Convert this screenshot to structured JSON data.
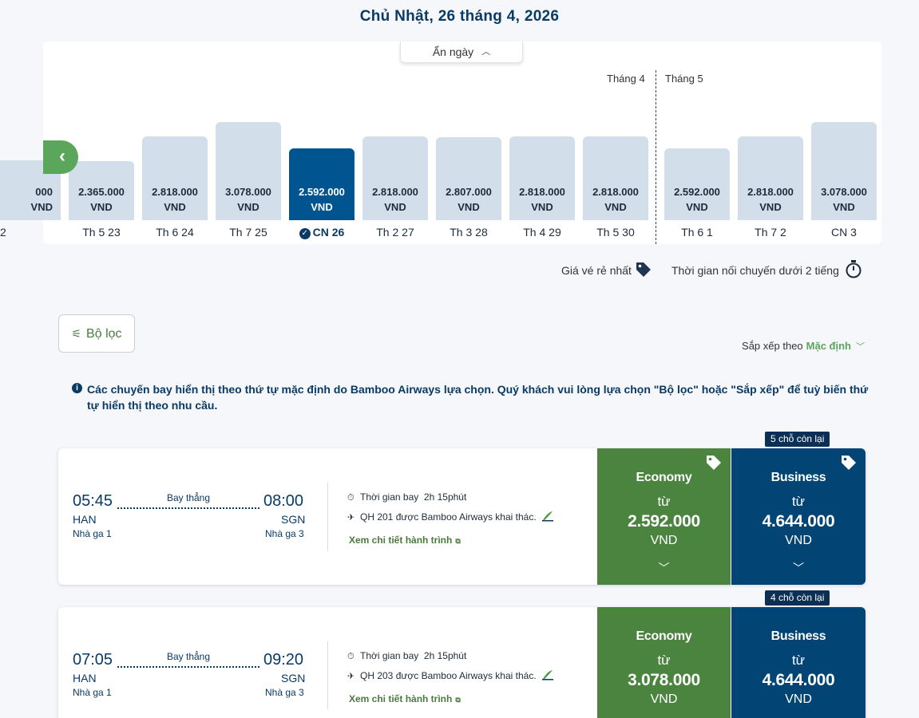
{
  "header": {
    "date_title": "Chủ Nhật, 26 tháng 4, 2026"
  },
  "calendar": {
    "hide_days_label": "Ẩn ngày",
    "months": [
      "Tháng 4",
      "Tháng 5"
    ],
    "days": [
      {
        "price": "000",
        "currency": "VND",
        "label": "2",
        "selected": false
      },
      {
        "price": "2.365.000",
        "currency": "VND",
        "label": "Th 5 23",
        "selected": false
      },
      {
        "price": "2.818.000",
        "currency": "VND",
        "label": "Th 6 24",
        "selected": false
      },
      {
        "price": "3.078.000",
        "currency": "VND",
        "label": "Th 7 25",
        "selected": false
      },
      {
        "price": "2.592.000",
        "currency": "VND",
        "label": "CN 26",
        "selected": true
      },
      {
        "price": "2.818.000",
        "currency": "VND",
        "label": "Th 2 27",
        "selected": false
      },
      {
        "price": "2.807.000",
        "currency": "VND",
        "label": "Th 3 28",
        "selected": false
      },
      {
        "price": "2.818.000",
        "currency": "VND",
        "label": "Th 4 29",
        "selected": false
      },
      {
        "price": "2.818.000",
        "currency": "VND",
        "label": "Th 5 30",
        "selected": false
      },
      {
        "price": "2.592.000",
        "currency": "VND",
        "label": "Th 6 1",
        "selected": false
      },
      {
        "price": "2.818.000",
        "currency": "VND",
        "label": "Th 7 2",
        "selected": false
      },
      {
        "price": "3.078.000",
        "currency": "VND",
        "label": "CN 3",
        "selected": false
      }
    ]
  },
  "legend": {
    "cheapest": "Giá vé rẻ nhất",
    "short_connection": "Thời gian nối chuyến dưới 2 tiếng"
  },
  "toolbar": {
    "filter_label": "Bộ lọc",
    "sort_prefix": "Sắp xếp theo",
    "sort_value": "Mặc định"
  },
  "notice": "Các chuyến bay hiển thị theo thứ tự mặc định do Bamboo Airways lựa chọn. Quý khách vui lòng lựa chọn \"Bộ lọc\" hoặc \"Sắp xếp\" để tuỳ biến thứ tự hiển thị theo nhu cầu.",
  "flights": [
    {
      "seats_left": "5 chỗ còn lại",
      "depart_time": "05:45",
      "arrive_time": "08:00",
      "route_type": "Bay thẳng",
      "from": "HAN",
      "to": "SGN",
      "from_terminal": "Nhà ga 1",
      "to_terminal": "Nhà ga 3",
      "duration_label": "Thời gian bay",
      "duration": "2h 15phút",
      "operator": "QH 201 được Bamboo Airways khai thác.",
      "details_link": "Xem chi tiết hành trình",
      "economy": {
        "class": "Economy",
        "from": "từ",
        "price": "2.592.000",
        "currency": "VND"
      },
      "business": {
        "class": "Business",
        "from": "từ",
        "price": "4.644.000",
        "currency": "VND"
      }
    },
    {
      "seats_left": "4 chỗ còn lại",
      "depart_time": "07:05",
      "arrive_time": "09:20",
      "route_type": "Bay thẳng",
      "from": "HAN",
      "to": "SGN",
      "from_terminal": "Nhà ga 1",
      "to_terminal": "Nhà ga 3",
      "duration_label": "Thời gian bay",
      "duration": "2h 15phút",
      "operator": "QH 203 được Bamboo Airways khai thác.",
      "details_link": "Xem chi tiết hành trình",
      "economy": {
        "class": "Economy",
        "from": "từ",
        "price": "3.078.000",
        "currency": "VND"
      },
      "business": {
        "class": "Business",
        "from": "từ",
        "price": "4.644.000",
        "currency": "VND"
      }
    }
  ]
}
